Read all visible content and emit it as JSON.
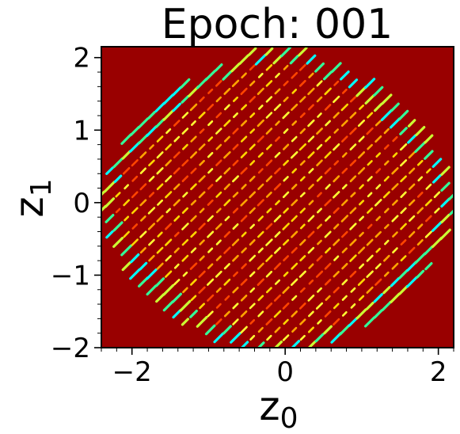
{
  "chart_data": {
    "type": "heatmap",
    "title": "Epoch: 001",
    "xlabel_base": "z",
    "xlabel_sub": "0",
    "ylabel_base": "z",
    "ylabel_sub": "1",
    "xlim": [
      -2.4,
      2.2
    ],
    "ylim": [
      -2.0,
      2.15
    ],
    "xticks": [
      -2,
      0,
      2
    ],
    "xtick_labels": [
      "−2",
      "0",
      "2"
    ],
    "yticks": [
      -2,
      -1,
      0,
      1,
      2
    ],
    "ytick_labels": [
      "−2",
      "−1",
      "0",
      "1",
      "2"
    ],
    "minor_ticks": true,
    "grid": false,
    "colormap": "jet",
    "background_color": "#990000",
    "support_region": {
      "shape": "rounded-diamond",
      "center": [
        -0.1,
        0.0
      ],
      "x_half_extent": 2.35,
      "y_half_extent": 2.15
    },
    "lattice": {
      "spacing": 0.155,
      "angle_deg": 45,
      "point_colors": [
        "#ffff33",
        "#ffd700",
        "#ffa500",
        "#ff4500"
      ]
    },
    "edge_colors": [
      "#00ffff",
      "#33ff99",
      "#ccff33"
    ]
  }
}
